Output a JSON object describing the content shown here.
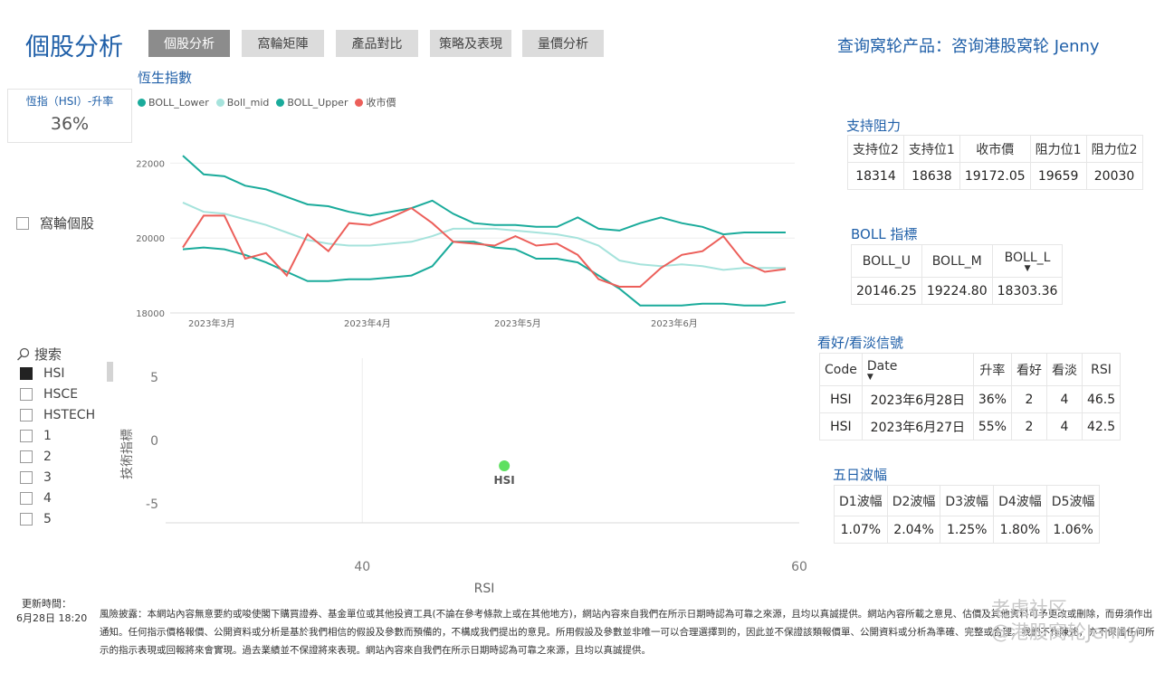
{
  "header": {
    "app_title": "個股分析",
    "tabs": [
      "個股分析",
      "窩輪矩陣",
      "產品對比",
      "策略及表現",
      "量價分析"
    ],
    "query_link": "查询窝轮产品：咨询港股窝轮 Jenny"
  },
  "kpi": {
    "label": "恆指（HSI）-升率",
    "value": "36%"
  },
  "filter": {
    "warrant_label": "窩輪個股",
    "search_placeholder": "搜索",
    "items": [
      {
        "label": "HSI",
        "checked": true
      },
      {
        "label": "HSCE",
        "checked": false
      },
      {
        "label": "HSTECH",
        "checked": false
      },
      {
        "label": "1",
        "checked": false
      },
      {
        "label": "2",
        "checked": false
      },
      {
        "label": "3",
        "checked": false
      },
      {
        "label": "4",
        "checked": false
      },
      {
        "label": "5",
        "checked": false
      }
    ]
  },
  "colors": {
    "lower": "#1aab9b",
    "mid": "#a6e3dc",
    "upper": "#1aab9b",
    "close": "#ec5f5a",
    "scatter": "#5ee060",
    "accent": "#1f5fa8"
  },
  "chart_data": [
    {
      "type": "line",
      "title": "恆生指數",
      "legend": [
        "BOLL_Lower",
        "Boll_mid",
        "BOLL_Upper",
        "收市價"
      ],
      "legend_position": "top-left",
      "x_ticks": [
        "2023年3月",
        "2023年4月",
        "2023年5月",
        "2023年6月"
      ],
      "y_ticks": [
        18000,
        20000,
        22000
      ],
      "ylim": [
        18000,
        22300
      ],
      "grid": true,
      "series": [
        {
          "name": "BOLL_Upper",
          "values": [
            22200,
            21700,
            21650,
            21400,
            21300,
            21100,
            20900,
            20850,
            20700,
            20600,
            20700,
            20800,
            21000,
            20650,
            20400,
            20350,
            20350,
            20300,
            20300,
            20550,
            20250,
            20200,
            20400,
            20550,
            20400,
            20300,
            20100,
            20150,
            20150,
            20150
          ]
        },
        {
          "name": "Boll_mid",
          "values": [
            20950,
            20700,
            20650,
            20500,
            20350,
            20150,
            19950,
            19850,
            19800,
            19800,
            19850,
            19900,
            20050,
            20250,
            20250,
            20250,
            20200,
            20150,
            20100,
            20000,
            19800,
            19400,
            19300,
            19250,
            19300,
            19250,
            19150,
            19200,
            19200,
            19200
          ]
        },
        {
          "name": "BOLL_Lower",
          "values": [
            19700,
            19750,
            19700,
            19550,
            19350,
            19100,
            18850,
            18850,
            18900,
            18900,
            18950,
            19000,
            19250,
            19900,
            19900,
            19750,
            19700,
            19450,
            19450,
            19350,
            19000,
            18650,
            18200,
            18200,
            18200,
            18250,
            18250,
            18200,
            18200,
            18300
          ]
        },
        {
          "name": "收市價",
          "values": [
            19750,
            20600,
            20600,
            19450,
            19600,
            19000,
            20100,
            19650,
            20400,
            20350,
            20550,
            20800,
            20400,
            19900,
            19850,
            19800,
            20050,
            19800,
            19850,
            19550,
            18900,
            18700,
            18700,
            19200,
            19550,
            19650,
            20050,
            19350,
            19100,
            19172
          ]
        }
      ]
    },
    {
      "type": "scatter",
      "xlabel": "RSI",
      "ylabel": "技術指標",
      "x_ticks": [
        40,
        60
      ],
      "y_ticks": [
        5,
        0,
        -5
      ],
      "xlim": [
        31,
        60
      ],
      "ylim": [
        -6.5,
        6.5
      ],
      "points": [
        {
          "label": "HSI",
          "x": 46.5,
          "y": -2
        }
      ]
    }
  ],
  "support_resistance": {
    "title": "支持阻力",
    "headers": [
      "支持位2",
      "支持位1",
      "收市價",
      "阻力位1",
      "阻力位2"
    ],
    "values": [
      "18314",
      "18638",
      "19172.05",
      "19659",
      "20030"
    ]
  },
  "boll": {
    "title": "BOLL 指標",
    "headers": [
      "BOLL_U",
      "BOLL_M",
      "BOLL_L"
    ],
    "values": [
      "20146.25",
      "19224.80",
      "18303.36"
    ]
  },
  "signals": {
    "title": "看好/看淡信號",
    "headers": [
      "Code",
      "Date",
      "升率",
      "看好",
      "看淡",
      "RSI"
    ],
    "rows": [
      [
        "HSI",
        "2023年6月28日",
        "36%",
        "2",
        "4",
        "46.5"
      ],
      [
        "HSI",
        "2023年6月27日",
        "55%",
        "2",
        "4",
        "42.5"
      ]
    ]
  },
  "volatility": {
    "title": "五日波幅",
    "headers": [
      "D1波幅",
      "D2波幅",
      "D3波幅",
      "D4波幅",
      "D5波幅"
    ],
    "values": [
      "1.07%",
      "2.04%",
      "1.25%",
      "1.80%",
      "1.06%"
    ]
  },
  "footer": {
    "update_label": "更新時間：",
    "update_time": "6月28日 18:20",
    "disclaimer": "風險披露：本網站內容無意要約或唆使閣下購買證券、基金單位或其他投資工具(不論在參考條款上或在其他地方)，網站內容來自我們在所示日期時認為可靠之來源，且均以真誠提供。網站內容所載之意見、估價及其他資料可予更改或刪除，而毋須作出通知。任何指示價格報價、公開資料或分析是基於我們相信的假設及參數而預備的，不構成我們提出的意見。所用假設及參數並非唯一可以合理選擇到的，因此並不保證該類報價單、公開資料或分析為準確、完整或合理。我們不作陳述，亦不保證任何所示的指示表現或回報將來會實現。過去業績並不保證將來表現。網站內容來自我們在所示日期時認為可靠之來源，且均以真誠提供。",
    "watermark_line1": "老虎社区",
    "watermark_line2": "@港股窝轮Jenny"
  }
}
